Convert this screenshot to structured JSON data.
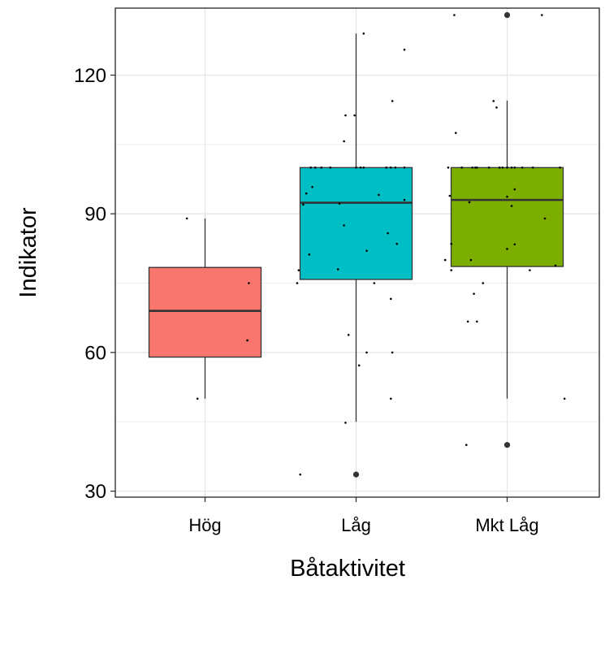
{
  "chart_data": {
    "type": "boxplot",
    "xlabel": "Båtaktivitet",
    "ylabel": "Indikator",
    "ylim": [
      28.7,
      134.5
    ],
    "yticks": [
      30,
      60,
      90,
      120
    ],
    "grid": true,
    "categories": [
      "Hög",
      "Låg",
      "Mkt Låg"
    ],
    "colors": {
      "Hög": "#f8766d",
      "Låg": "#00bfc4",
      "Mkt Låg": "#7cae00"
    },
    "boxes": [
      {
        "category": "Hög",
        "whisker_low": 50,
        "q1": 59,
        "median": 69,
        "q3": 78.4,
        "whisker_high": 89,
        "outliers": [],
        "points": [
          {
            "x": 0.88,
            "y": 89
          },
          {
            "x": 0.95,
            "y": 50
          },
          {
            "x": 1.29,
            "y": 75
          },
          {
            "x": 1.28,
            "y": 62.6
          }
        ]
      },
      {
        "category": "Låg",
        "whisker_low": 45,
        "q1": 75.8,
        "median": 92.4,
        "q3": 100,
        "whisker_high": 129,
        "outliers": [
          33.6
        ],
        "points": [
          {
            "x": 2.05,
            "y": 129
          },
          {
            "x": 2.32,
            "y": 125.5
          },
          {
            "x": 2.24,
            "y": 114.4
          },
          {
            "x": 1.93,
            "y": 111.3
          },
          {
            "x": 1.99,
            "y": 111.3
          },
          {
            "x": 1.92,
            "y": 105.7
          },
          {
            "x": 1.7,
            "y": 100
          },
          {
            "x": 1.73,
            "y": 100
          },
          {
            "x": 1.77,
            "y": 100
          },
          {
            "x": 1.83,
            "y": 100
          },
          {
            "x": 2.0,
            "y": 100
          },
          {
            "x": 2.03,
            "y": 100
          },
          {
            "x": 2.05,
            "y": 100
          },
          {
            "x": 2.2,
            "y": 100
          },
          {
            "x": 2.23,
            "y": 100
          },
          {
            "x": 2.26,
            "y": 100
          },
          {
            "x": 2.32,
            "y": 100
          },
          {
            "x": 1.71,
            "y": 95.8
          },
          {
            "x": 1.67,
            "y": 94.4
          },
          {
            "x": 2.15,
            "y": 94.1
          },
          {
            "x": 2.32,
            "y": 93
          },
          {
            "x": 1.65,
            "y": 92
          },
          {
            "x": 1.89,
            "y": 92.2
          },
          {
            "x": 1.92,
            "y": 87.5
          },
          {
            "x": 2.21,
            "y": 85.8
          },
          {
            "x": 2.27,
            "y": 83.5
          },
          {
            "x": 2.07,
            "y": 82
          },
          {
            "x": 1.69,
            "y": 81.2
          },
          {
            "x": 1.62,
            "y": 77.8
          },
          {
            "x": 1.88,
            "y": 78
          },
          {
            "x": 1.61,
            "y": 75
          },
          {
            "x": 2.12,
            "y": 75
          },
          {
            "x": 2.23,
            "y": 71.6
          },
          {
            "x": 1.95,
            "y": 63.8
          },
          {
            "x": 2.07,
            "y": 60
          },
          {
            "x": 2.24,
            "y": 60
          },
          {
            "x": 2.02,
            "y": 57.2
          },
          {
            "x": 2.23,
            "y": 50
          },
          {
            "x": 1.93,
            "y": 44.8
          },
          {
            "x": 1.63,
            "y": 33.6
          }
        ]
      },
      {
        "category": "Mkt Låg",
        "whisker_low": 50,
        "q1": 78.6,
        "median": 93,
        "q3": 100,
        "whisker_high": 114.5,
        "outliers": [
          133,
          40
        ],
        "points": [
          {
            "x": 2.65,
            "y": 133
          },
          {
            "x": 3.23,
            "y": 133
          },
          {
            "x": 2.91,
            "y": 114.4
          },
          {
            "x": 2.93,
            "y": 113
          },
          {
            "x": 2.66,
            "y": 107.5
          },
          {
            "x": 2.61,
            "y": 100
          },
          {
            "x": 2.7,
            "y": 100
          },
          {
            "x": 2.77,
            "y": 100
          },
          {
            "x": 2.79,
            "y": 100
          },
          {
            "x": 2.8,
            "y": 100
          },
          {
            "x": 2.88,
            "y": 100
          },
          {
            "x": 2.95,
            "y": 100
          },
          {
            "x": 2.97,
            "y": 100
          },
          {
            "x": 3.0,
            "y": 100
          },
          {
            "x": 3.03,
            "y": 100
          },
          {
            "x": 3.05,
            "y": 100
          },
          {
            "x": 3.1,
            "y": 100
          },
          {
            "x": 3.17,
            "y": 100
          },
          {
            "x": 3.35,
            "y": 100
          },
          {
            "x": 3.05,
            "y": 95.3
          },
          {
            "x": 2.62,
            "y": 93.9
          },
          {
            "x": 3.0,
            "y": 93.7
          },
          {
            "x": 2.75,
            "y": 92.5
          },
          {
            "x": 3.03,
            "y": 91.7
          },
          {
            "x": 3.25,
            "y": 89
          },
          {
            "x": 2.63,
            "y": 83.5
          },
          {
            "x": 3.05,
            "y": 83.4
          },
          {
            "x": 3.0,
            "y": 82.4
          },
          {
            "x": 2.59,
            "y": 80
          },
          {
            "x": 2.76,
            "y": 80
          },
          {
            "x": 3.32,
            "y": 78.8
          },
          {
            "x": 2.63,
            "y": 77.8
          },
          {
            "x": 3.15,
            "y": 77.8
          },
          {
            "x": 2.84,
            "y": 75
          },
          {
            "x": 2.78,
            "y": 72.7
          },
          {
            "x": 2.74,
            "y": 66.7
          },
          {
            "x": 2.8,
            "y": 66.7
          },
          {
            "x": 3.38,
            "y": 50
          },
          {
            "x": 2.73,
            "y": 40
          }
        ]
      }
    ]
  }
}
